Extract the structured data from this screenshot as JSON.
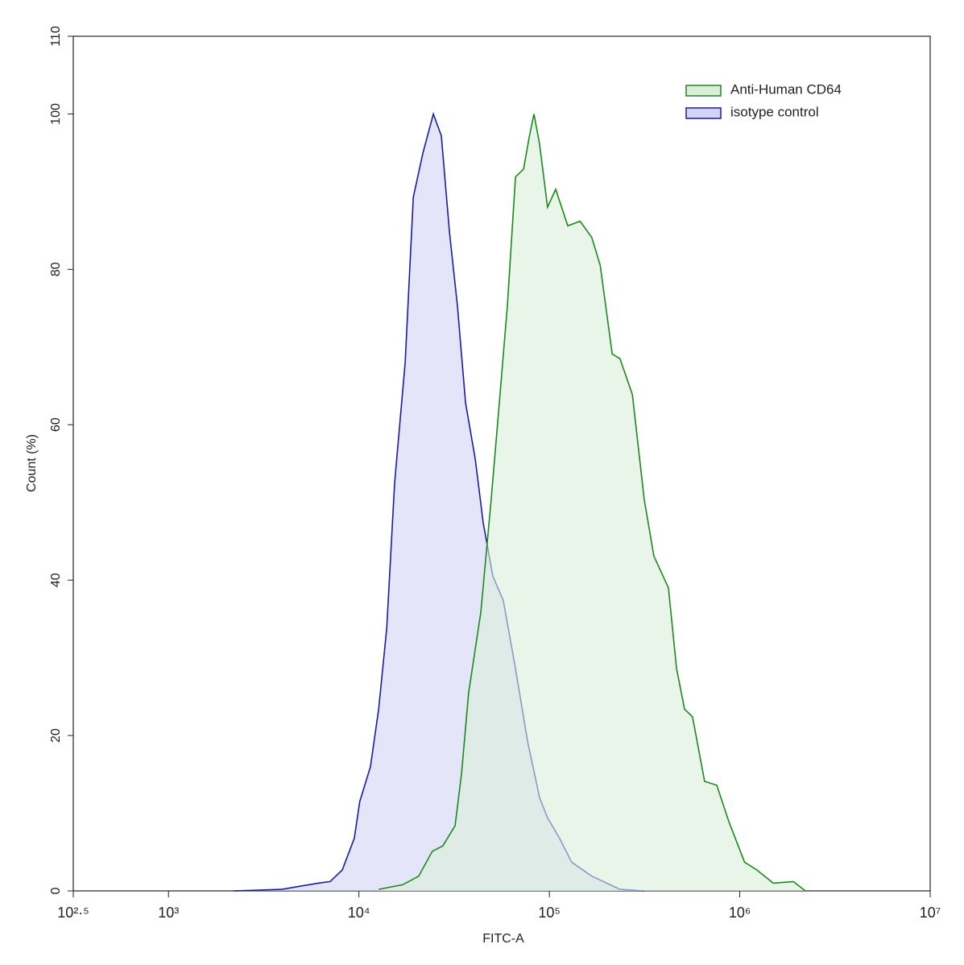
{
  "chart_data": {
    "type": "histogram-overlay",
    "xlabel": "FITC-A",
    "ylabel": "Count  (%)",
    "xscale": "log",
    "xlim": [
      316.23,
      10000000
    ],
    "ylim": [
      0,
      110
    ],
    "xticks": [
      {
        "value": 316.23,
        "label": "10²·⁵"
      },
      {
        "value": 1000,
        "label": "10³"
      },
      {
        "value": 10000,
        "label": "10⁴"
      },
      {
        "value": 100000,
        "label": "10⁵"
      },
      {
        "value": 1000000,
        "label": "10⁶"
      },
      {
        "value": 10000000,
        "label": "10⁷"
      }
    ],
    "yticks": [
      0,
      20,
      40,
      60,
      80,
      100,
      110
    ],
    "legend": "upper right",
    "series": [
      {
        "name": "Anti-Human CD64",
        "color": "#1a8a1a",
        "fill": "#d8efd8",
        "x": [
          12700,
          17000,
          20600,
          24300,
          27600,
          32000,
          34600,
          37700,
          43700,
          49500,
          54600,
          60200,
          66400,
          73200,
          78400,
          83000,
          88900,
          97900,
          108000,
          125000,
          145000,
          167000,
          185000,
          214000,
          235000,
          273000,
          315000,
          354000,
          422000,
          466000,
          513000,
          565000,
          654000,
          757000,
          877000,
          1060000,
          1230000,
          1500000,
          1910000,
          2210000
        ],
        "values": [
          0.2,
          0.8,
          1.9,
          5.1,
          5.8,
          8.4,
          15.1,
          25.5,
          35.9,
          50.4,
          62.8,
          75.3,
          91.9,
          92.9,
          97,
          100,
          96.1,
          88,
          90.3,
          85.6,
          86.2,
          84.1,
          80.5,
          69.1,
          68.5,
          63.9,
          50.4,
          43.1,
          39,
          28.6,
          23.4,
          22.4,
          14.1,
          13.6,
          8.9,
          3.7,
          2.7,
          1,
          1.2,
          0
        ]
      },
      {
        "name": "isotype control",
        "color": "#1a1aa8",
        "fill": "#d4d4f6",
        "x": [
          2200,
          3940,
          6100,
          7060,
          8180,
          9460,
          10100,
          11500,
          12700,
          14000,
          15400,
          17500,
          19300,
          21700,
          24600,
          27100,
          29900,
          32900,
          36300,
          40800,
          45000,
          50500,
          57300,
          66400,
          76800,
          88900,
          97900,
          113000,
          131000,
          167000,
          235000,
          315000
        ],
        "values": [
          0,
          0.2,
          1,
          1.2,
          2.7,
          6.8,
          11.5,
          16,
          23.4,
          33.8,
          52.5,
          68,
          89.3,
          95,
          100,
          97.2,
          84.8,
          75.3,
          62.8,
          55.6,
          47.3,
          40.5,
          37.4,
          28.6,
          19.3,
          12,
          9.4,
          6.8,
          3.7,
          1.9,
          0.2,
          0
        ]
      }
    ]
  }
}
